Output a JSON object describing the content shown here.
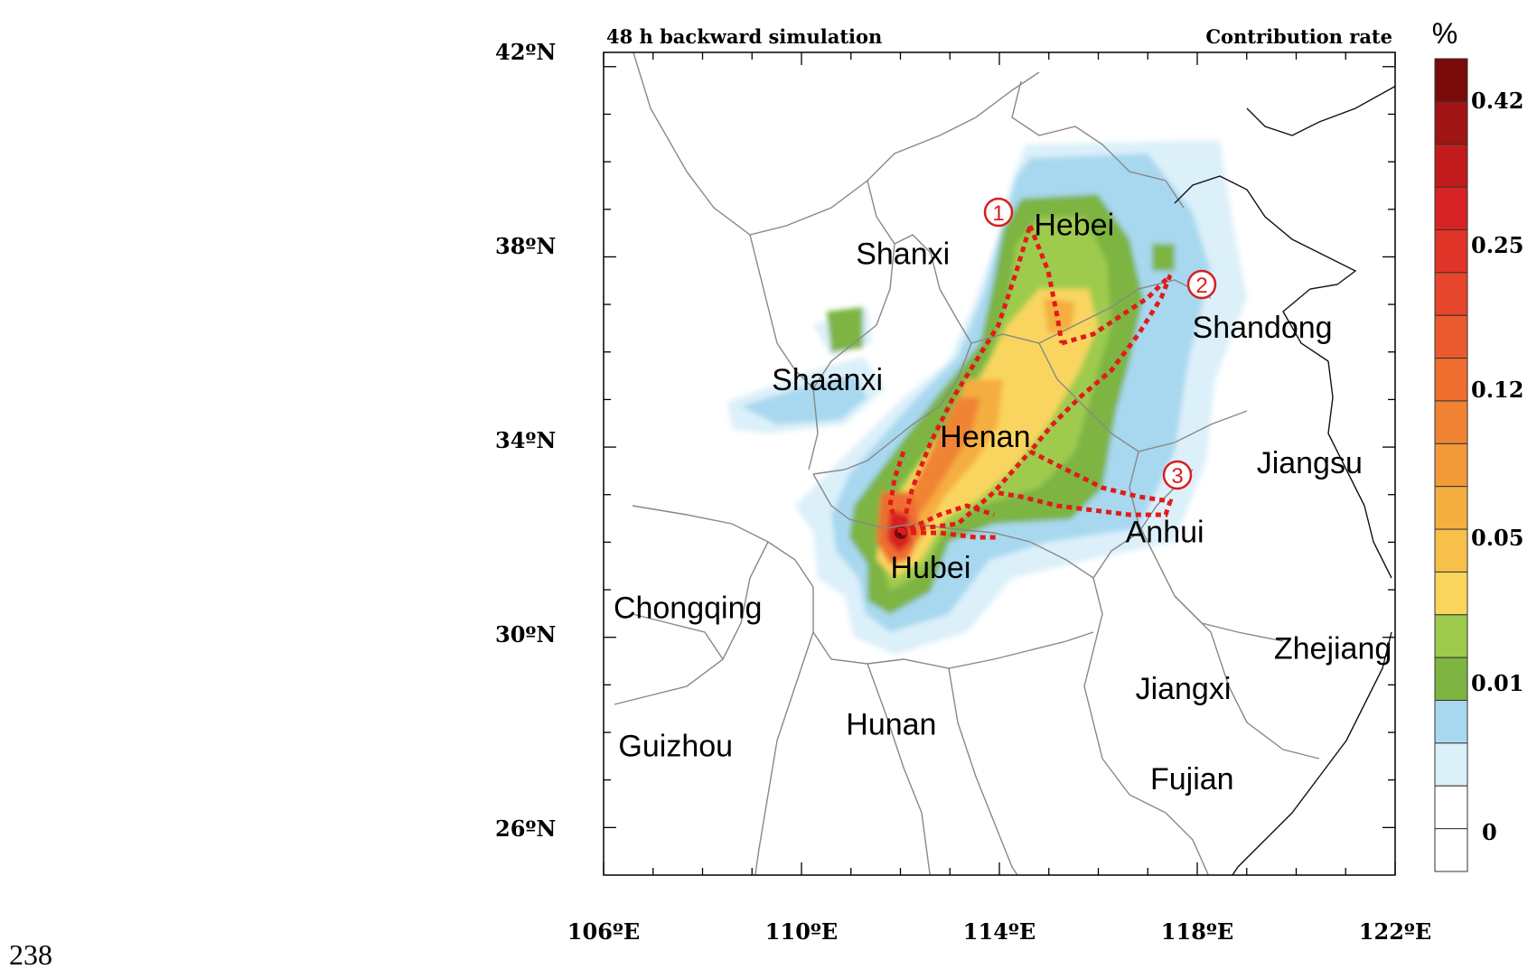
{
  "header": {
    "left": "48 h backward simulation",
    "right": "Contribution rate"
  },
  "colorbar": {
    "unit": "%",
    "labels": [
      "0.42",
      "0.25",
      "0.12",
      "0.05",
      "0.01",
      "0"
    ],
    "colors": [
      "#7a0a0a",
      "#a11414",
      "#c21b1b",
      "#d62424",
      "#e03428",
      "#e5462c",
      "#ea5a2e",
      "#ee6e30",
      "#f08434",
      "#f29a3a",
      "#f5ae40",
      "#f7c04a",
      "#f9d55e",
      "#9ecb4e",
      "#7db442",
      "#a8d8ef",
      "#dcf0fa",
      "#ffffff",
      "#ffffff"
    ]
  },
  "axes": {
    "x_ticks": [
      "106ºE",
      "110ºE",
      "114ºE",
      "118ºE",
      "122ºE"
    ],
    "y_ticks": [
      "42ºN",
      "38ºN",
      "34ºN",
      "30ºN",
      "26ºN"
    ]
  },
  "provinces": [
    {
      "name": "Hebei",
      "lon": 114.7,
      "lat": 38.45
    },
    {
      "name": "Shanxi",
      "lon": 111.1,
      "lat": 37.85
    },
    {
      "name": "Shandong",
      "lon": 117.9,
      "lat": 36.3
    },
    {
      "name": "Shaanxi",
      "lon": 109.4,
      "lat": 35.2
    },
    {
      "name": "Henan",
      "lon": 112.8,
      "lat": 34.0
    },
    {
      "name": "Jiangsu",
      "lon": 119.2,
      "lat": 33.45
    },
    {
      "name": "Anhui",
      "lon": 116.55,
      "lat": 32.0
    },
    {
      "name": "Hubei",
      "lon": 111.8,
      "lat": 31.25
    },
    {
      "name": "Chongqing",
      "lon": 106.2,
      "lat": 30.4
    },
    {
      "name": "Zhejiang",
      "lon": 119.55,
      "lat": 29.55
    },
    {
      "name": "Jiangxi",
      "lon": 116.75,
      "lat": 28.7
    },
    {
      "name": "Hunan",
      "lon": 110.9,
      "lat": 27.95
    },
    {
      "name": "Guizhou",
      "lon": 106.3,
      "lat": 27.5
    },
    {
      "name": "Fujian",
      "lon": 117.05,
      "lat": 26.8
    }
  ],
  "pathway_markers": [
    "1",
    "2",
    "3"
  ],
  "page_number": "238"
}
